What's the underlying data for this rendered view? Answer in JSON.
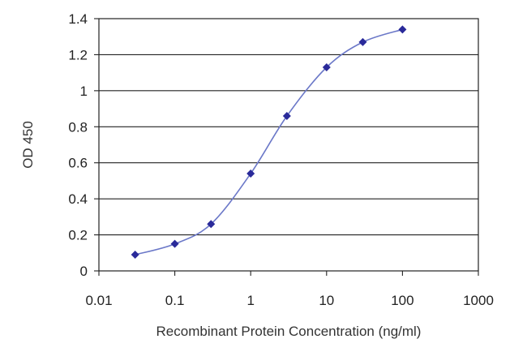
{
  "chart_data": {
    "type": "line",
    "title": "",
    "xlabel": "Recombinant Protein Concentration (ng/ml)",
    "ylabel": "OD 450",
    "x_scale": "log",
    "xlim": [
      0.01,
      1000
    ],
    "ylim": [
      0,
      1.4
    ],
    "x_ticks": [
      "0.01",
      "0.1",
      "1",
      "10",
      "100",
      "1000"
    ],
    "y_ticks": [
      "0",
      "0.2",
      "0.4",
      "0.6",
      "0.8",
      "1",
      "1.2",
      "1.4"
    ],
    "grid": "horizontal",
    "legend": "none",
    "series": [
      {
        "color": "#2a2a9a",
        "marker": "diamond",
        "x": [
          0.03,
          0.1,
          0.3,
          1,
          3,
          10,
          30,
          100
        ],
        "y": [
          0.09,
          0.15,
          0.26,
          0.54,
          0.86,
          1.13,
          1.27,
          1.34
        ]
      }
    ]
  }
}
